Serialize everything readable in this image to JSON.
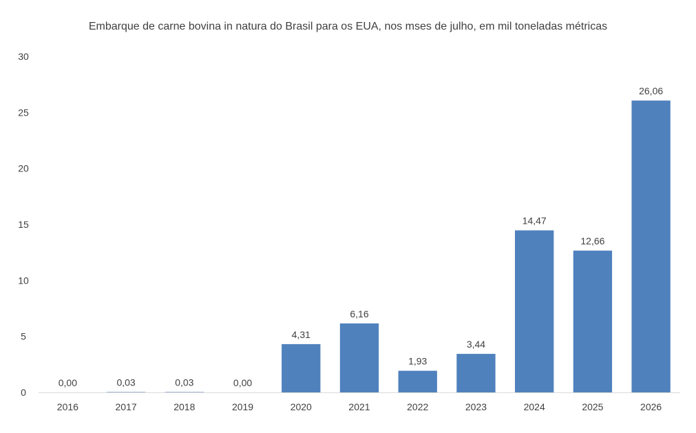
{
  "chart_data": {
    "type": "bar",
    "title": "Embarque de carne bovina in natura do Brasil para os EUA, nos mses de julho, em mil toneladas métricas",
    "categories": [
      "2016",
      "2017",
      "2018",
      "2019",
      "2020",
      "2021",
      "2022",
      "2023",
      "2024",
      "2025",
      "2026"
    ],
    "values": [
      0.0,
      0.03,
      0.03,
      0.0,
      4.31,
      6.16,
      1.93,
      3.44,
      14.47,
      12.66,
      26.06
    ],
    "data_labels": [
      "0,00",
      "0,03",
      "0,03",
      "0,00",
      "4,31",
      "6,16",
      "1,93",
      "3,44",
      "14,47",
      "12,66",
      "26,06"
    ],
    "ylim": [
      0,
      30
    ],
    "yticks": [
      0,
      5,
      10,
      15,
      20,
      25,
      30
    ],
    "xlabel": "",
    "ylabel": "",
    "grid": false,
    "legend": "none",
    "bar_color": "#4f81bd",
    "text_color": "#404040",
    "axis_color": "#d9d9d9"
  }
}
